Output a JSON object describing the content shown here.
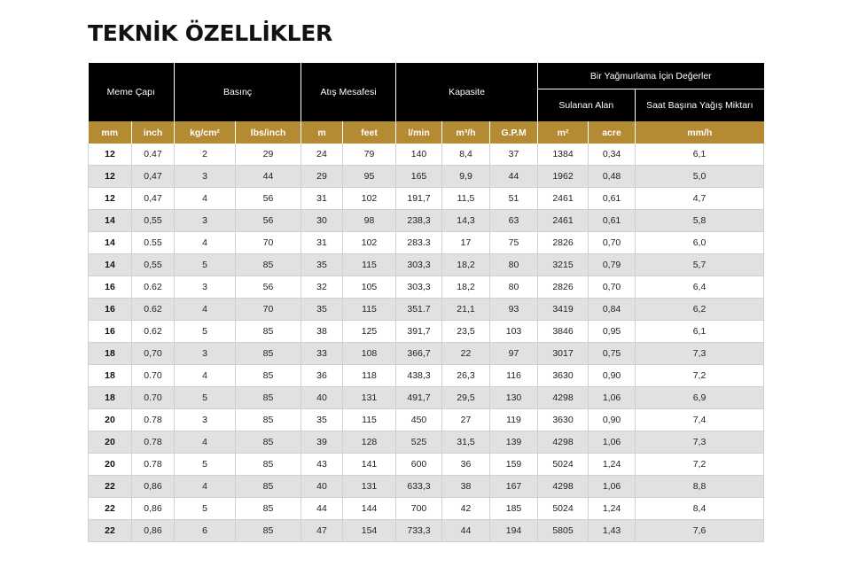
{
  "page": {
    "title": "TEKNİK ÖZELLİKLER"
  },
  "table": {
    "group_headers": {
      "nozzle": "Meme Çapı",
      "pressure": "Basınç",
      "throw": "Atış Mesafesi",
      "capacity": "Kapasite",
      "per_sprinkler": "Bir Yağmurlama İçin Değerler",
      "irrigated_area": "Sulanan Alan",
      "rain_per_hour": "Saat Başına Yağış Miktarı"
    },
    "units": [
      "mm",
      "inch",
      "kg/cm²",
      "lbs/inch",
      "m",
      "feet",
      "l/min",
      "m³/h",
      "G.P.M",
      "m²",
      "acre",
      "mm/h"
    ],
    "rows": [
      [
        "12",
        "0.47",
        "2",
        "29",
        "24",
        "79",
        "140",
        "8,4",
        "37",
        "1384",
        "0,34",
        "6,1"
      ],
      [
        "12",
        "0,47",
        "3",
        "44",
        "29",
        "95",
        "165",
        "9,9",
        "44",
        "1962",
        "0,48",
        "5,0"
      ],
      [
        "12",
        "0,47",
        "4",
        "56",
        "31",
        "102",
        "191,7",
        "11,5",
        "51",
        "2461",
        "0,61",
        "4,7"
      ],
      [
        "14",
        "0,55",
        "3",
        "56",
        "30",
        "98",
        "238,3",
        "14,3",
        "63",
        "2461",
        "0,61",
        "5,8"
      ],
      [
        "14",
        "0.55",
        "4",
        "70",
        "31",
        "102",
        "283.3",
        "17",
        "75",
        "2826",
        "0,70",
        "6,0"
      ],
      [
        "14",
        "0,55",
        "5",
        "85",
        "35",
        "115",
        "303,3",
        "18,2",
        "80",
        "3215",
        "0,79",
        "5,7"
      ],
      [
        "16",
        "0.62",
        "3",
        "56",
        "32",
        "105",
        "303,3",
        "18,2",
        "80",
        "2826",
        "0,70",
        "6,4"
      ],
      [
        "16",
        "0.62",
        "4",
        "70",
        "35",
        "115",
        "351.7",
        "21,1",
        "93",
        "3419",
        "0,84",
        "6,2"
      ],
      [
        "16",
        "0.62",
        "5",
        "85",
        "38",
        "125",
        "391,7",
        "23,5",
        "103",
        "3846",
        "0,95",
        "6,1"
      ],
      [
        "18",
        "0,70",
        "3",
        "85",
        "33",
        "108",
        "366,7",
        "22",
        "97",
        "3017",
        "0,75",
        "7,3"
      ],
      [
        "18",
        "0.70",
        "4",
        "85",
        "36",
        "118",
        "438,3",
        "26,3",
        "116",
        "3630",
        "0,90",
        "7,2"
      ],
      [
        "18",
        "0.70",
        "5",
        "85",
        "40",
        "131",
        "491,7",
        "29,5",
        "130",
        "4298",
        "1,06",
        "6,9"
      ],
      [
        "20",
        "0.78",
        "3",
        "85",
        "35",
        "115",
        "450",
        "27",
        "119",
        "3630",
        "0,90",
        "7,4"
      ],
      [
        "20",
        "0.78",
        "4",
        "85",
        "39",
        "128",
        "525",
        "31,5",
        "139",
        "4298",
        "1,06",
        "7,3"
      ],
      [
        "20",
        "0.78",
        "5",
        "85",
        "43",
        "141",
        "600",
        "36",
        "159",
        "5024",
        "1,24",
        "7,2"
      ],
      [
        "22",
        "0,86",
        "4",
        "85",
        "40",
        "131",
        "633,3",
        "38",
        "167",
        "4298",
        "1,06",
        "8,8"
      ],
      [
        "22",
        "0,86",
        "5",
        "85",
        "44",
        "144",
        "700",
        "42",
        "185",
        "5024",
        "1,24",
        "8,4"
      ],
      [
        "22",
        "0,86",
        "6",
        "85",
        "47",
        "154",
        "733,3",
        "44",
        "194",
        "5805",
        "1,43",
        "7,6"
      ]
    ]
  },
  "colors": {
    "header_bg": "#000000",
    "unit_row_bg": "#b48a33",
    "stripe_bg": "#e1e1e1"
  }
}
